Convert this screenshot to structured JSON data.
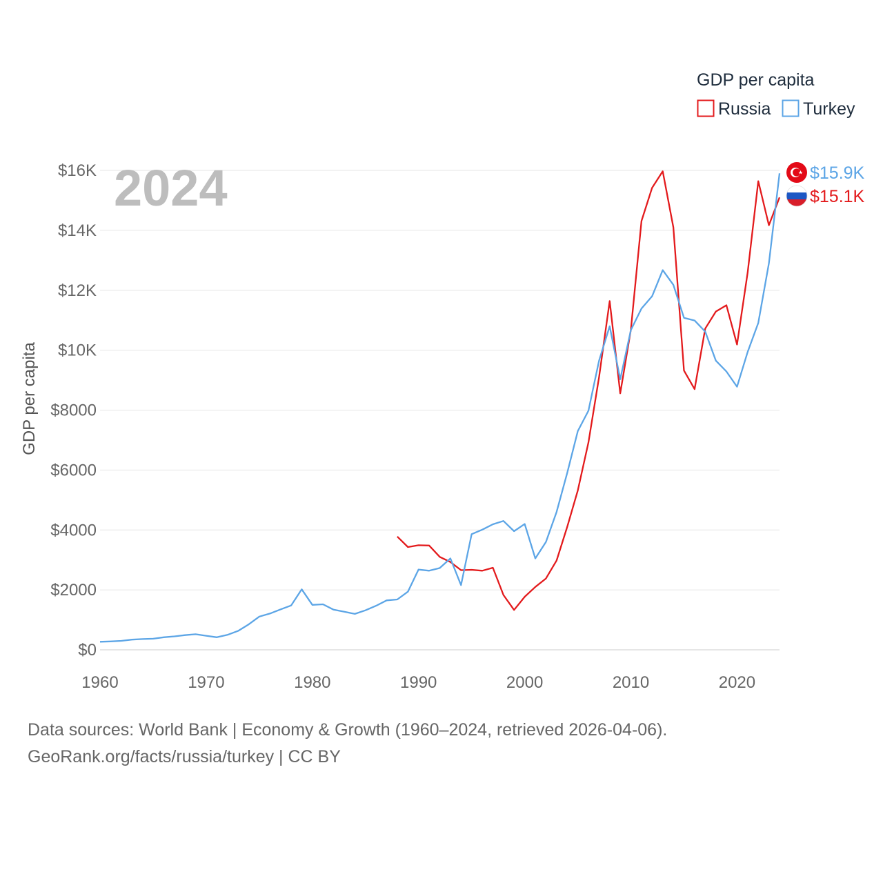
{
  "chart_data": {
    "type": "line",
    "title": "GDP per capita",
    "xlabel": "",
    "ylabel": "GDP per capita",
    "year_label": "2024",
    "xlim": [
      1960,
      2024
    ],
    "ylim": [
      0,
      16000
    ],
    "x_ticks": [
      1960,
      1970,
      1980,
      1990,
      2000,
      2010,
      2020
    ],
    "y_ticks": [
      {
        "value": 0,
        "label": "$0"
      },
      {
        "value": 2000,
        "label": "$2000"
      },
      {
        "value": 4000,
        "label": "$4000"
      },
      {
        "value": 6000,
        "label": "$6000"
      },
      {
        "value": 8000,
        "label": "$8000"
      },
      {
        "value": 10000,
        "label": "$10K"
      },
      {
        "value": 12000,
        "label": "$12K"
      },
      {
        "value": 14000,
        "label": "$14K"
      },
      {
        "value": 16000,
        "label": "$16K"
      }
    ],
    "grid": true,
    "legend": {
      "title": "GDP per capita",
      "position": "top-right"
    },
    "series": [
      {
        "name": "Russia",
        "color": "#e31a1c",
        "end_label": "$15.1K",
        "flag": "russia-flag",
        "x": [
          1988,
          1989,
          1990,
          1991,
          1992,
          1993,
          1994,
          1995,
          1996,
          1997,
          1998,
          1999,
          2000,
          2001,
          2002,
          2003,
          2004,
          2005,
          2006,
          2007,
          2008,
          2009,
          2010,
          2011,
          2012,
          2013,
          2014,
          2015,
          2016,
          2017,
          2018,
          2019,
          2020,
          2021,
          2022,
          2023,
          2024
        ],
        "values": [
          3780,
          3430,
          3490,
          3480,
          3100,
          2930,
          2660,
          2670,
          2640,
          2740,
          1830,
          1330,
          1770,
          2100,
          2380,
          2980,
          4100,
          5320,
          6920,
          9100,
          11640,
          8560,
          10680,
          14310,
          15420,
          15970,
          14100,
          9320,
          8700,
          10720,
          11290,
          11500,
          10190,
          12590,
          15640,
          14170,
          15100
        ]
      },
      {
        "name": "Turkey",
        "color": "#5ca5e6",
        "end_label": "$15.9K",
        "flag": "turkey-flag",
        "x": [
          1960,
          1961,
          1962,
          1963,
          1964,
          1965,
          1966,
          1967,
          1968,
          1969,
          1970,
          1971,
          1972,
          1973,
          1974,
          1975,
          1976,
          1977,
          1978,
          1979,
          1980,
          1981,
          1982,
          1983,
          1984,
          1985,
          1986,
          1987,
          1988,
          1989,
          1990,
          1991,
          1992,
          1993,
          1994,
          1995,
          1996,
          1997,
          1998,
          1999,
          2000,
          2001,
          2002,
          2003,
          2004,
          2005,
          2006,
          2007,
          2008,
          2009,
          2010,
          2011,
          2012,
          2013,
          2014,
          2015,
          2016,
          2017,
          2018,
          2019,
          2020,
          2021,
          2022,
          2023,
          2024
        ],
        "values": [
          270,
          280,
          300,
          340,
          360,
          370,
          420,
          450,
          490,
          520,
          470,
          420,
          500,
          630,
          850,
          1110,
          1210,
          1350,
          1480,
          2020,
          1500,
          1520,
          1340,
          1270,
          1200,
          1320,
          1470,
          1650,
          1680,
          1940,
          2680,
          2640,
          2730,
          3050,
          2160,
          3860,
          4010,
          4190,
          4300,
          3960,
          4200,
          3050,
          3600,
          4600,
          5900,
          7300,
          7980,
          9650,
          10800,
          9030,
          10670,
          11390,
          11800,
          12670,
          12180,
          11080,
          10990,
          10620,
          9650,
          9290,
          8780,
          9940,
          10910,
          12900,
          15900
        ]
      }
    ]
  },
  "source": {
    "line1": "Data sources: World Bank | Economy & Growth (1960–2024, retrieved 2026-04-06).",
    "line2": "GeoRank.org/facts/russia/turkey | CC BY"
  }
}
